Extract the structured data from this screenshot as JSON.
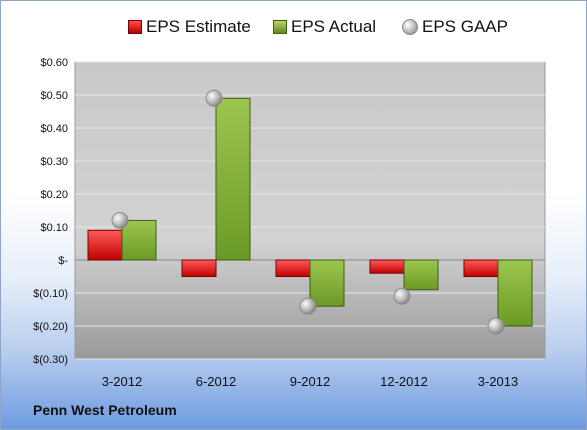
{
  "footer": {
    "company": "Penn West Petroleum"
  },
  "legend": {
    "estimate": "EPS Estimate",
    "actual": "EPS Actual",
    "gaap": "EPS GAAP"
  },
  "colors": {
    "estimate": "#e02020",
    "actual": "#8ab63c",
    "gaap": "#b0b0b0"
  },
  "chart_data": {
    "type": "bar",
    "categories": [
      "3-2012",
      "6-2012",
      "9-2012",
      "12-2012",
      "3-2013"
    ],
    "series": [
      {
        "name": "EPS Estimate",
        "values": [
          0.09,
          -0.05,
          -0.05,
          -0.04,
          -0.05
        ]
      },
      {
        "name": "EPS Actual",
        "values": [
          0.12,
          0.49,
          -0.14,
          -0.09,
          -0.2
        ]
      },
      {
        "name": "EPS GAAP",
        "values": [
          0.12,
          0.49,
          -0.14,
          -0.11,
          -0.2
        ]
      }
    ],
    "yticks": [
      0.6,
      0.5,
      0.4,
      0.3,
      0.2,
      0.1,
      0,
      -0.1,
      -0.2,
      -0.3
    ],
    "ytick_labels": [
      "$0.60",
      "$0.50",
      "$0.40",
      "$0.30",
      "$0.20",
      "$0.10",
      "$-",
      "$(0.10)",
      "$(0.20)",
      "$(0.30)"
    ],
    "ylim": [
      -0.3,
      0.6
    ],
    "grid": true,
    "legend_position": "top"
  }
}
